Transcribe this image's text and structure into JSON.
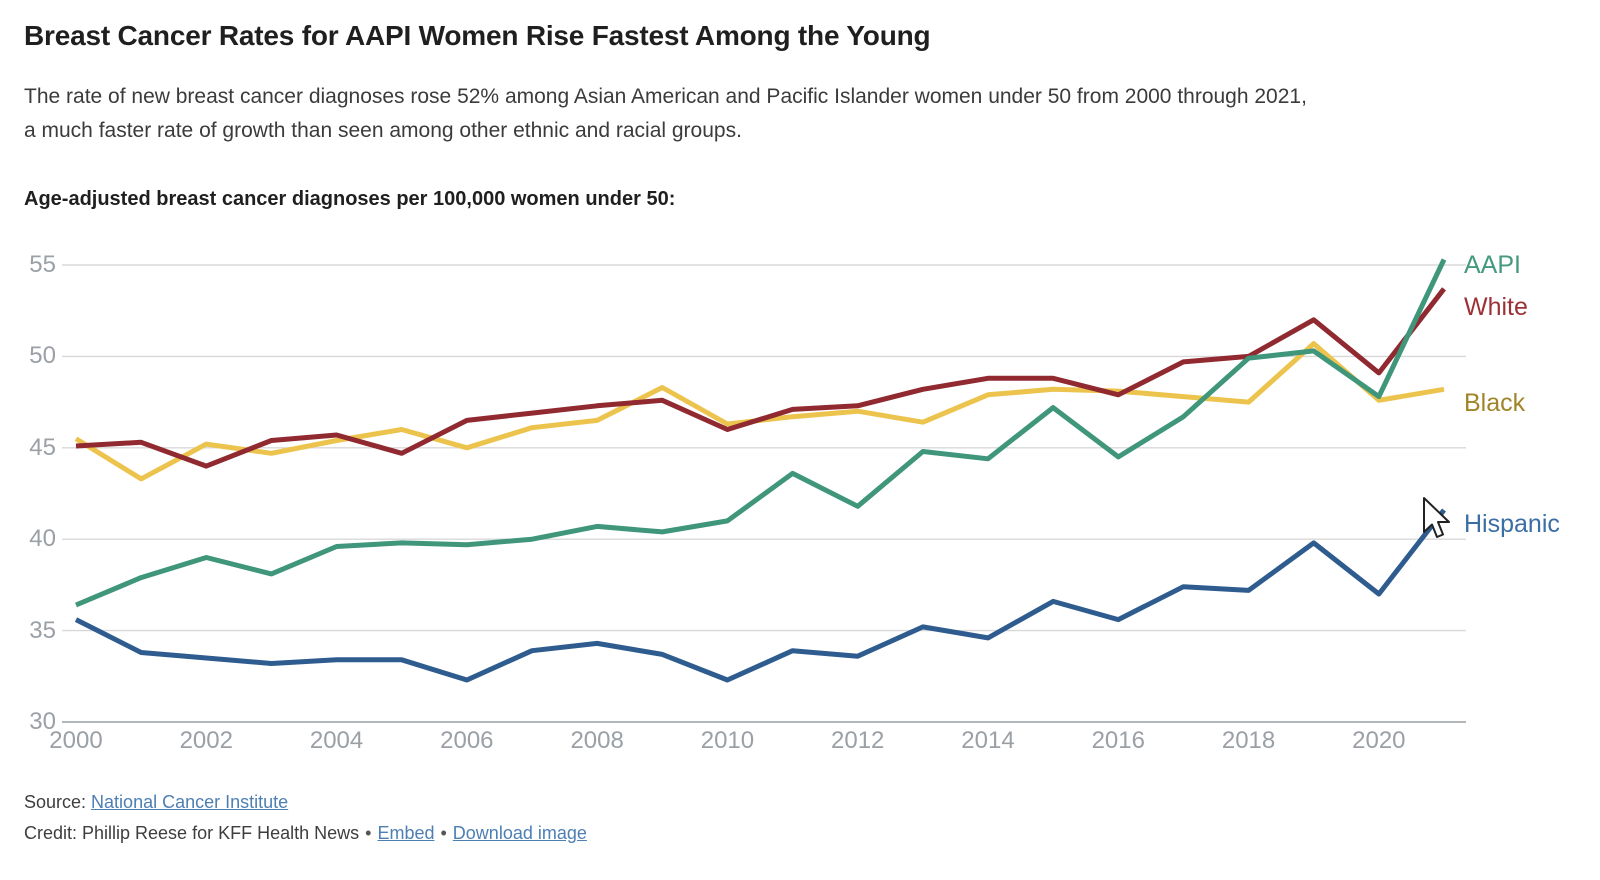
{
  "header": {
    "title": "Breast Cancer Rates for AAPI Women Rise Fastest Among the Young",
    "subtitle": "The rate of new breast cancer diagnoses rose 52% among Asian American and Pacific Islander women under 50 from 2000 through 2021, a much faster rate of growth than seen among other ethnic and racial groups."
  },
  "chart_data": {
    "type": "line",
    "title": "Age-adjusted breast cancer diagnoses per 100,000 women under 50:",
    "xlabel": "",
    "ylabel": "",
    "x": [
      2000,
      2001,
      2002,
      2003,
      2004,
      2005,
      2006,
      2007,
      2008,
      2009,
      2010,
      2011,
      2012,
      2013,
      2014,
      2015,
      2016,
      2017,
      2018,
      2019,
      2020,
      2021
    ],
    "series": [
      {
        "name": "AAPI",
        "color": "#3f967b",
        "label_color": "#44997e",
        "values": [
          36.4,
          37.9,
          39.0,
          38.1,
          39.6,
          39.8,
          39.7,
          40.0,
          40.7,
          40.4,
          41.0,
          43.6,
          41.8,
          44.8,
          44.4,
          47.2,
          44.5,
          46.7,
          49.9,
          50.3,
          47.8,
          55.3
        ]
      },
      {
        "name": "White",
        "color": "#902a30",
        "label_color": "#9c3136",
        "values": [
          45.1,
          45.3,
          44.0,
          45.4,
          45.7,
          44.7,
          46.5,
          46.9,
          47.3,
          47.6,
          46.0,
          47.1,
          47.3,
          48.2,
          48.8,
          48.8,
          47.9,
          49.7,
          50.0,
          52.0,
          49.1,
          53.7
        ]
      },
      {
        "name": "Black",
        "color": "#ecc44d",
        "label_color": "#a08528",
        "values": [
          45.5,
          43.3,
          45.2,
          44.7,
          45.4,
          46.0,
          45.0,
          46.1,
          46.5,
          48.3,
          46.3,
          46.7,
          47.0,
          46.4,
          47.9,
          48.2,
          48.1,
          47.8,
          47.5,
          50.7,
          47.6,
          48.2
        ]
      },
      {
        "name": "Hispanic",
        "color": "#2e5c8f",
        "label_color": "#3a6ea5",
        "values": [
          35.6,
          33.8,
          33.5,
          33.2,
          33.4,
          33.4,
          32.3,
          33.9,
          34.3,
          33.7,
          32.3,
          33.9,
          33.6,
          35.2,
          34.6,
          36.6,
          35.6,
          37.4,
          37.2,
          39.8,
          37.0,
          41.6
        ]
      }
    ],
    "xticks": [
      2000,
      2002,
      2004,
      2006,
      2008,
      2010,
      2012,
      2014,
      2016,
      2018,
      2020
    ],
    "yticks": [
      30,
      35,
      40,
      45,
      50,
      55
    ],
    "xlim": [
      2000,
      2021
    ],
    "ylim": [
      30,
      55
    ],
    "grid": true,
    "legend_position": "right"
  },
  "footer": {
    "source_prefix": "Source: ",
    "source_link_text": "National Cancer Institute",
    "credit_prefix": "Credit: Phillip Reese for KFF Health News",
    "separator": "•",
    "embed_link_text": "Embed",
    "download_link_text": "Download image"
  },
  "colors": {
    "gridline": "#d8d8d8",
    "axis_line": "#b3b7ba",
    "tick_label": "#9aa0a5",
    "title_text": "#1f1f1f",
    "body_text": "#3b3b3b",
    "link": "#4d7fb3"
  }
}
